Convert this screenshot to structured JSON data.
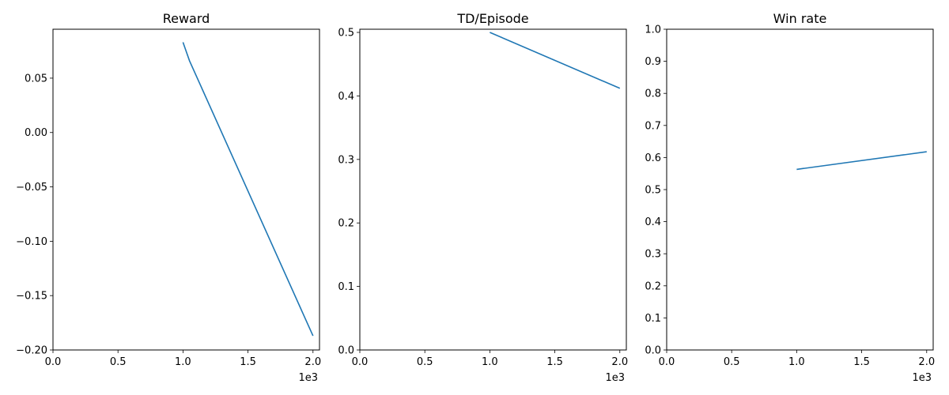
{
  "chart_data": [
    {
      "type": "line",
      "title": "Reward",
      "xlabel": "",
      "ylabel": "",
      "xlim": [
        0,
        2050
      ],
      "ylim": [
        -0.2,
        0.095
      ],
      "xticks": [
        0,
        500,
        1000,
        1500,
        2000
      ],
      "xtick_labels": [
        "0.0",
        "0.5",
        "1.0",
        "1.5",
        "2.0"
      ],
      "x_offset_label": "1e3",
      "yticks": [
        -0.2,
        -0.15,
        -0.1,
        -0.05,
        0.0,
        0.05
      ],
      "ytick_labels": [
        "−0.20",
        "−0.15",
        "−0.10",
        "−0.05",
        "0.00",
        "0.05"
      ],
      "grid": false,
      "series": [
        {
          "x": [
            1000,
            1050,
            2000
          ],
          "y": [
            0.083,
            0.066,
            -0.187
          ],
          "color": "#1f77b4"
        }
      ]
    },
    {
      "type": "line",
      "title": "TD/Episode",
      "xlabel": "",
      "ylabel": "",
      "xlim": [
        0,
        2050
      ],
      "ylim": [
        0,
        0.505
      ],
      "xticks": [
        0,
        500,
        1000,
        1500,
        2000
      ],
      "xtick_labels": [
        "0.0",
        "0.5",
        "1.0",
        "1.5",
        "2.0"
      ],
      "x_offset_label": "1e3",
      "yticks": [
        0.0,
        0.1,
        0.2,
        0.3,
        0.4,
        0.5
      ],
      "ytick_labels": [
        "0.0",
        "0.1",
        "0.2",
        "0.3",
        "0.4",
        "0.5"
      ],
      "grid": false,
      "series": [
        {
          "x": [
            1000,
            2000
          ],
          "y": [
            0.5,
            0.412
          ],
          "color": "#1f77b4"
        }
      ]
    },
    {
      "type": "line",
      "title": "Win rate",
      "xlabel": "",
      "ylabel": "",
      "xlim": [
        0,
        2050
      ],
      "ylim": [
        0,
        1.0
      ],
      "xticks": [
        0,
        500,
        1000,
        1500,
        2000
      ],
      "xtick_labels": [
        "0.0",
        "0.5",
        "1.0",
        "1.5",
        "2.0"
      ],
      "x_offset_label": "1e3",
      "yticks": [
        0.0,
        0.1,
        0.2,
        0.3,
        0.4,
        0.5,
        0.6,
        0.7,
        0.8,
        0.9,
        1.0
      ],
      "ytick_labels": [
        "0.0",
        "0.1",
        "0.2",
        "0.3",
        "0.4",
        "0.5",
        "0.6",
        "0.7",
        "0.8",
        "0.9",
        "1.0"
      ],
      "grid": false,
      "series": [
        {
          "x": [
            1000,
            2000
          ],
          "y": [
            0.563,
            0.618
          ],
          "color": "#1f77b4"
        }
      ]
    }
  ]
}
